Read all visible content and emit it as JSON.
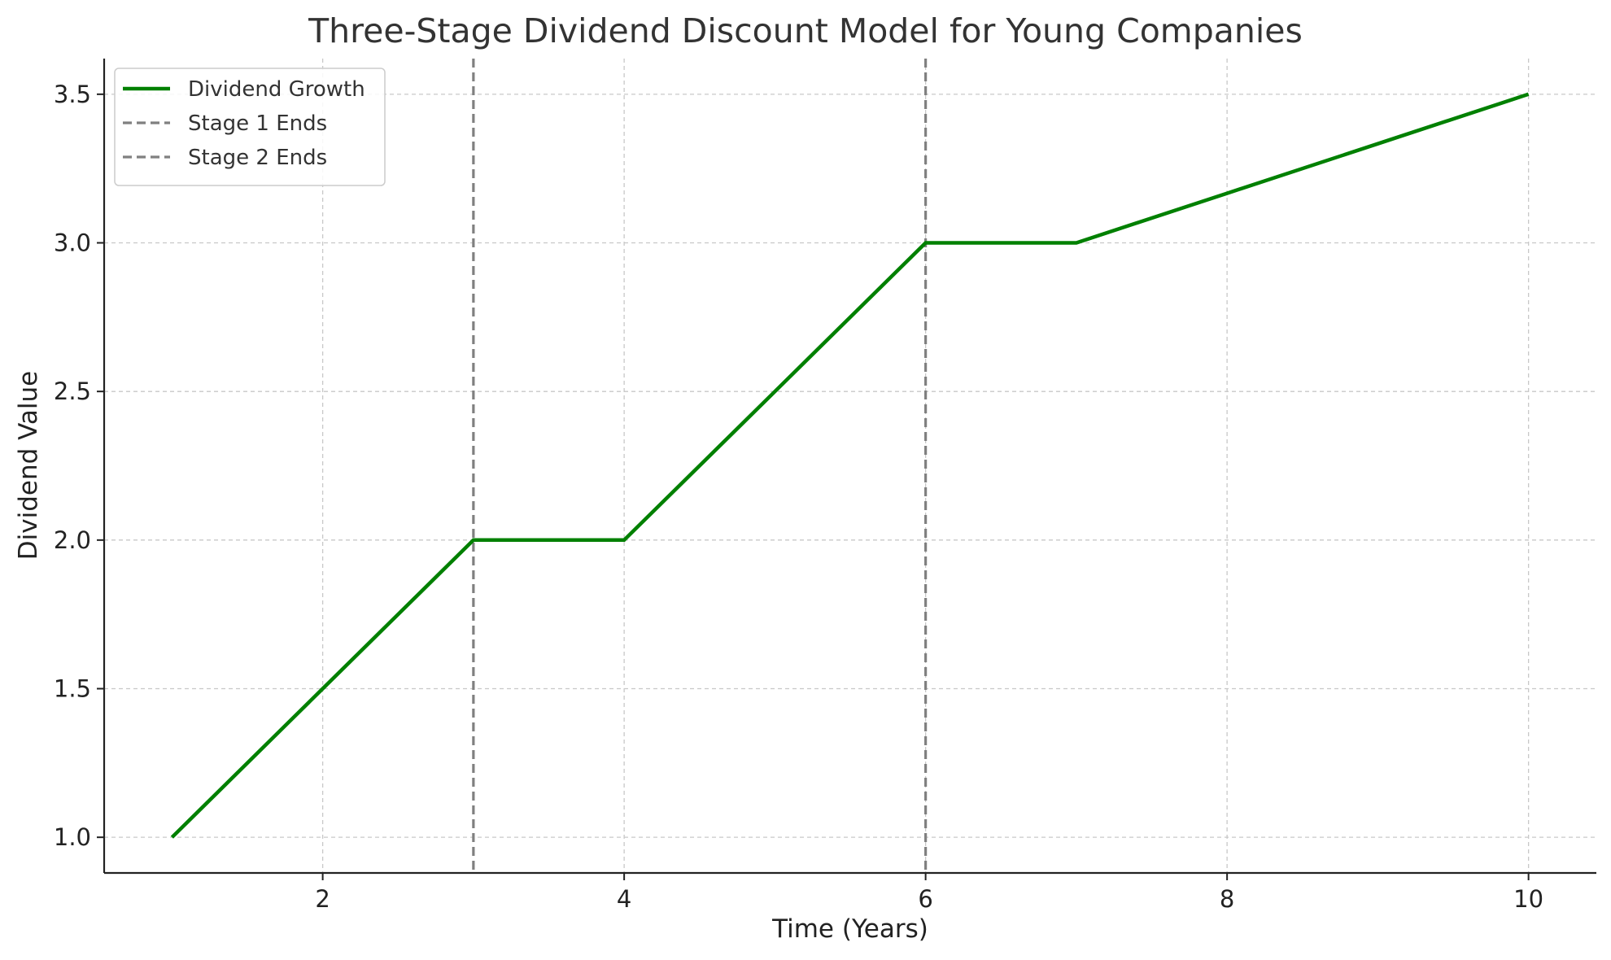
{
  "chart_data": {
    "type": "line",
    "title": "Three-Stage Dividend Discount Model for Young Companies",
    "xlabel": "Time (Years)",
    "ylabel": "Dividend Value",
    "xlim": [
      0.55,
      10.45
    ],
    "ylim": [
      0.88,
      3.62
    ],
    "x_ticks": [
      2,
      4,
      6,
      8,
      10
    ],
    "x_tick_labels": [
      "2",
      "4",
      "6",
      "8",
      "10"
    ],
    "y_ticks": [
      1.0,
      1.5,
      2.0,
      2.5,
      3.0,
      3.5
    ],
    "y_tick_labels": [
      "1.0",
      "1.5",
      "2.0",
      "2.5",
      "3.0",
      "3.5"
    ],
    "grid": true,
    "legend_position": "top-left",
    "series": [
      {
        "name": "Dividend Growth",
        "color": "#008000",
        "style": "solid",
        "x": [
          1,
          2,
          3,
          4,
          5,
          6,
          7,
          8,
          9,
          10
        ],
        "y": [
          1.0,
          1.5,
          2.0,
          2.0,
          2.5,
          3.0,
          3.0,
          3.1667,
          3.3333,
          3.5
        ]
      }
    ],
    "vlines": [
      {
        "name": "Stage 1 Ends",
        "x": 3,
        "color": "#808080",
        "style": "dashed"
      },
      {
        "name": "Stage 2 Ends",
        "x": 6,
        "color": "#808080",
        "style": "dashed"
      }
    ]
  }
}
